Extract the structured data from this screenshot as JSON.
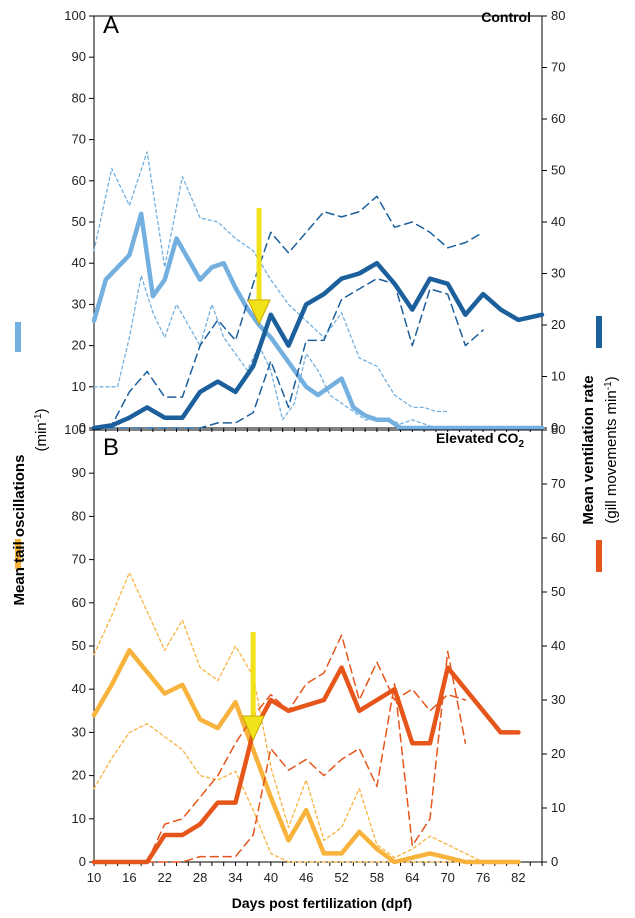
{
  "chart_data": [
    {
      "type": "line",
      "panel": "A",
      "condition": "Control",
      "colors": {
        "tail": "#74b0df",
        "vent": "#1b5f9c"
      },
      "y_left_lim": [
        0,
        100
      ],
      "y_right_lim": [
        0,
        80
      ],
      "x_lim": [
        10,
        86
      ],
      "arrow_x": 38,
      "series": [
        {
          "axis": "left",
          "style": "solid",
          "x": [
            10,
            12,
            14,
            16,
            18,
            20,
            22,
            24,
            26,
            28,
            30,
            32,
            34,
            36,
            38,
            40,
            42,
            44,
            46,
            48,
            50,
            52,
            54,
            56,
            58,
            60,
            62,
            64,
            66,
            68,
            70,
            72,
            74,
            76,
            78,
            80,
            82,
            84,
            86
          ],
          "y": [
            26,
            36,
            39,
            42,
            52,
            32,
            36,
            46,
            41,
            36,
            39,
            40,
            34,
            29,
            25,
            22,
            18,
            14,
            10,
            8,
            10,
            12,
            5,
            3,
            2,
            2,
            0,
            0,
            0,
            0,
            0,
            0,
            0,
            0,
            0,
            0,
            0,
            0,
            0
          ]
        },
        {
          "axis": "left",
          "style": "dotted",
          "x": [
            10,
            13,
            16,
            19,
            22,
            25,
            28,
            31,
            34,
            37,
            40,
            43,
            46,
            49,
            52,
            55,
            58,
            61,
            64,
            66,
            68,
            70
          ],
          "y": [
            43,
            63,
            54,
            67,
            39,
            61,
            51,
            50,
            46,
            43,
            36,
            30,
            26,
            22,
            28,
            17,
            15,
            8,
            5,
            5,
            4,
            4
          ]
        },
        {
          "axis": "left",
          "style": "dotted",
          "x": [
            10,
            12,
            14,
            16,
            18,
            20,
            22,
            24,
            26,
            28,
            30,
            32,
            34,
            36,
            38,
            40,
            42,
            44,
            46,
            48,
            50,
            52,
            54,
            56,
            58,
            60,
            62,
            64,
            66,
            68
          ],
          "y": [
            10,
            10,
            10,
            22,
            37,
            28,
            22,
            30,
            25,
            20,
            30,
            22,
            18,
            14,
            20,
            14,
            2,
            6,
            18,
            14,
            8,
            6,
            4,
            2,
            2,
            2,
            1,
            2,
            1,
            0
          ]
        },
        {
          "axis": "right",
          "style": "solid",
          "x": [
            10,
            13,
            16,
            19,
            22,
            25,
            28,
            31,
            34,
            37,
            40,
            43,
            46,
            49,
            52,
            55,
            58,
            61,
            64,
            67,
            70,
            73,
            76,
            79,
            82,
            86
          ],
          "y": [
            0,
            0.5,
            2,
            4,
            2,
            2,
            7,
            9,
            7,
            12,
            22,
            16,
            24,
            26,
            29,
            30,
            32,
            28,
            23,
            29,
            28,
            22,
            26,
            23,
            21,
            22
          ]
        },
        {
          "axis": "right",
          "style": "dashed",
          "x": [
            10,
            13,
            16,
            19,
            22,
            25,
            28,
            31,
            34,
            37,
            40,
            43,
            46,
            49,
            52,
            55,
            58,
            61,
            64,
            67,
            70,
            73,
            76
          ],
          "y": [
            0,
            0.5,
            7,
            11,
            6,
            6,
            16,
            21,
            17,
            28,
            38,
            34,
            38,
            42,
            41,
            42,
            45,
            39,
            40,
            38,
            35,
            36,
            38
          ]
        },
        {
          "axis": "right",
          "style": "dashed",
          "x": [
            10,
            13,
            16,
            19,
            22,
            25,
            28,
            31,
            34,
            37,
            40,
            43,
            46,
            49,
            52,
            55,
            58,
            61,
            64,
            67,
            70,
            73,
            76
          ],
          "y": [
            0,
            0,
            0,
            0,
            0,
            0,
            0,
            1,
            1,
            3,
            13,
            4,
            17,
            17,
            25,
            27,
            29,
            28,
            16,
            27,
            26,
            16,
            19
          ]
        }
      ]
    },
    {
      "type": "line",
      "panel": "B",
      "condition": "Elevated CO₂",
      "colors": {
        "tail": "#f8b33c",
        "vent": "#e6561b"
      },
      "y_left_lim": [
        0,
        100
      ],
      "y_right_lim": [
        0,
        80
      ],
      "x_lim": [
        10,
        86
      ],
      "arrow_x": 37,
      "series": [
        {
          "axis": "left",
          "style": "solid",
          "x": [
            10,
            13,
            16,
            19,
            22,
            25,
            28,
            31,
            34,
            37,
            40,
            43,
            46,
            49,
            52,
            55,
            58,
            61,
            64,
            67,
            70,
            73,
            76,
            79,
            82
          ],
          "y": [
            34,
            41,
            49,
            44,
            39,
            41,
            33,
            31,
            37,
            26,
            15,
            5,
            12,
            2,
            2,
            7,
            3,
            0,
            1,
            2,
            1,
            0,
            0,
            0,
            0
          ]
        },
        {
          "axis": "left",
          "style": "dotted",
          "x": [
            10,
            13,
            16,
            19,
            22,
            25,
            28,
            31,
            34,
            37,
            40,
            43,
            46,
            49,
            52,
            55,
            58,
            61,
            64,
            67,
            70,
            73,
            76
          ],
          "y": [
            48,
            57,
            67,
            58,
            49,
            56,
            45,
            42,
            50,
            43,
            22,
            8,
            19,
            5,
            8,
            17,
            4,
            1,
            3,
            6,
            4,
            2,
            0
          ]
        },
        {
          "axis": "left",
          "style": "dotted",
          "x": [
            10,
            13,
            16,
            19,
            22,
            25,
            28,
            31,
            34,
            37,
            40,
            43,
            46,
            49,
            52,
            55,
            58,
            61,
            64,
            67,
            70,
            73,
            76
          ],
          "y": [
            17,
            24,
            30,
            32,
            29,
            26,
            20,
            19,
            21,
            12,
            2,
            0,
            0,
            0,
            0,
            0,
            0,
            0,
            0,
            0,
            0,
            0,
            0
          ]
        },
        {
          "axis": "right",
          "style": "solid",
          "x": [
            10,
            13,
            16,
            19,
            22,
            25,
            28,
            31,
            34,
            37,
            40,
            43,
            46,
            49,
            52,
            55,
            58,
            61,
            64,
            67,
            70,
            73,
            76,
            79,
            82
          ],
          "y": [
            0,
            0,
            0,
            0,
            5,
            5,
            7,
            11,
            11,
            24,
            30,
            28,
            29,
            30,
            36,
            28,
            30,
            32,
            22,
            22,
            36,
            32,
            28,
            24,
            24
          ]
        },
        {
          "axis": "right",
          "style": "dashed",
          "x": [
            10,
            13,
            16,
            19,
            22,
            25,
            28,
            31,
            34,
            37,
            40,
            43,
            46,
            49,
            52,
            55,
            58,
            61,
            64,
            67,
            70,
            73
          ],
          "y": [
            0,
            0,
            0,
            0,
            7,
            8,
            12,
            16,
            22,
            27,
            31,
            28,
            33,
            35,
            42,
            30,
            37,
            30,
            32,
            28,
            31,
            30
          ]
        },
        {
          "axis": "right",
          "style": "dashed",
          "x": [
            10,
            13,
            16,
            19,
            22,
            25,
            28,
            31,
            34,
            37,
            40,
            43,
            46,
            49,
            52,
            55,
            58,
            61,
            64,
            67,
            70,
            73
          ],
          "y": [
            0,
            0,
            0,
            0,
            0,
            0,
            1,
            1,
            1,
            5,
            21,
            17,
            19,
            16,
            19,
            21,
            14,
            33,
            3,
            8,
            39,
            22
          ]
        }
      ]
    }
  ],
  "labels": {
    "panel_a": "A",
    "panel_b": "B",
    "control": "Control",
    "elevated_main": "Elevated CO",
    "elevated_sub": "2",
    "x_axis": "Days post fertilization (dpf)",
    "left_axis_1": "Mean tail oscillations",
    "left_axis_2": "(min",
    "left_axis_sup": "-1",
    "left_axis_end": ")",
    "right_axis_1": "Mean ventilation rate",
    "right_axis_2": "(gill movements min",
    "right_axis_sup": "-1",
    "right_axis_end": ")"
  },
  "ticks": {
    "left": [
      "0",
      "10",
      "20",
      "30",
      "40",
      "50",
      "60",
      "70",
      "80",
      "90",
      "100"
    ],
    "right": [
      "0",
      "10",
      "20",
      "30",
      "40",
      "50",
      "60",
      "70",
      "80"
    ],
    "x": [
      "10",
      "16",
      "22",
      "28",
      "34",
      "40",
      "46",
      "52",
      "58",
      "64",
      "70",
      "76",
      "82"
    ]
  }
}
